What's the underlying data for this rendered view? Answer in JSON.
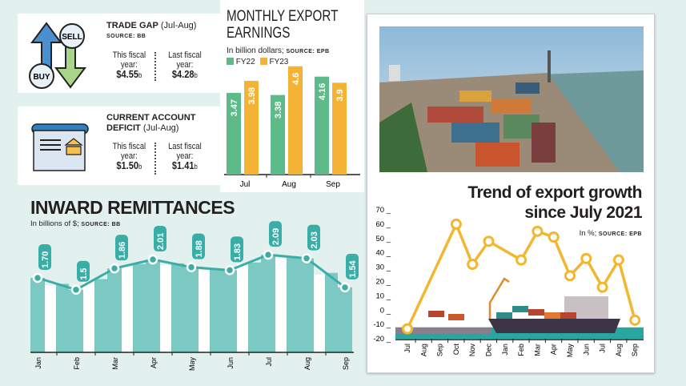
{
  "trade_gap": {
    "title": "TRADE GAP",
    "period": "(Jul-Aug)",
    "source": "SOURCE: BB",
    "this_label": "This fiscal year:",
    "this_value": "$4.55",
    "last_label": "Last fiscal year:",
    "last_value": "$4.28",
    "unit": "b",
    "icon_buy": "BUY",
    "icon_sell": "SELL"
  },
  "current_account": {
    "title1": "CURRENT ACCOUNT",
    "title2": "DEFICIT",
    "period": "(Jul-Aug)",
    "this_label": "This fiscal year:",
    "this_value": "$1.50",
    "last_label": "Last fiscal year:",
    "last_value": "$1.41",
    "unit": "b"
  },
  "chart_data": [
    {
      "type": "bar",
      "title": "MONTHLY EXPORT EARNINGS",
      "subtitle": "In billion dollars;",
      "source": "SOURCE: EPB",
      "categories": [
        "Jul",
        "Aug",
        "Sep"
      ],
      "series": [
        {
          "name": "FY22",
          "values": [
            3.47,
            3.38,
            4.16
          ],
          "labels": [
            "3.47",
            "3.38",
            "4.16"
          ],
          "color": "#5dbb8a"
        },
        {
          "name": "FY23",
          "values": [
            3.98,
            4.6,
            3.9
          ],
          "labels": [
            "3.98",
            "4.6",
            "3.9"
          ],
          "color": "#f5b335"
        }
      ],
      "ylim": [
        0,
        5
      ]
    },
    {
      "type": "line",
      "title": "INWARD REMITTANCES",
      "subtitle": "In billions of $;",
      "source": "SOURCE: BB",
      "categories": [
        "Jan",
        "Feb",
        "Mar",
        "Apr",
        "May",
        "Jun",
        "Jul",
        "Aug",
        "Sep"
      ],
      "values": [
        1.7,
        1.5,
        1.86,
        2.01,
        1.88,
        1.83,
        2.09,
        2.03,
        1.54
      ],
      "labels": [
        "1.70",
        "1.5",
        "1.86",
        "2.01",
        "1.88",
        "1.83",
        "2.09",
        "2.03",
        "1.54"
      ],
      "color": "#3aaea6"
    },
    {
      "type": "line",
      "title": "Trend of export growth",
      "title2": "since July 2021",
      "subtitle": "In %;",
      "source": "SOURCE: EPB",
      "categories": [
        "Jul",
        "Aug",
        "Sep",
        "Oct",
        "Nov",
        "Dec",
        "Jan",
        "Feb",
        "Mar",
        "Apr",
        "May",
        "Jun",
        "Jul",
        "Aug",
        "Sep"
      ],
      "values": [
        -13,
        null,
        null,
        60,
        32,
        48,
        null,
        35,
        55,
        51,
        24,
        36,
        16,
        35,
        -7
      ],
      "yticks": [
        70,
        60,
        50,
        40,
        30,
        20,
        10,
        0,
        -10,
        -20
      ],
      "ylim": [
        -20,
        70
      ],
      "color": "#f3b72f"
    }
  ]
}
